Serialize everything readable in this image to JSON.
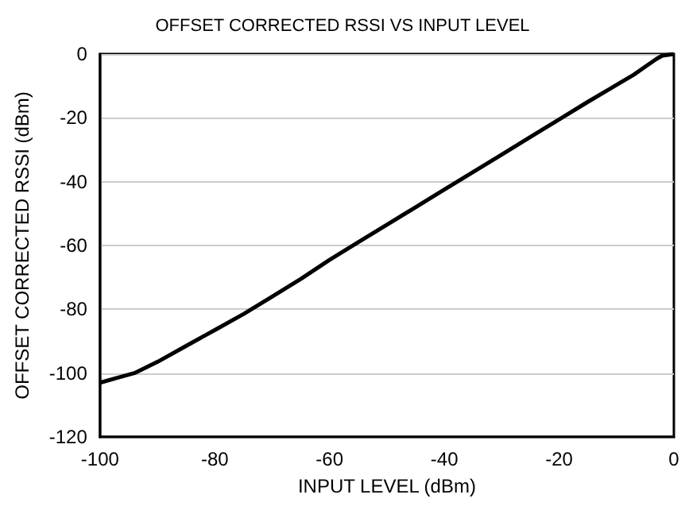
{
  "chart_data": {
    "type": "line",
    "title": "OFFSET CORRECTED RSSI VS INPUT LEVEL",
    "xlabel": "INPUT LEVEL (dBm)",
    "ylabel": "OFFSET CORRECTED RSSI (dBm)",
    "x": [
      -100,
      -97,
      -94,
      -90,
      -85,
      -80,
      -75,
      -70,
      -65,
      -60,
      -55,
      -50,
      -45,
      -40,
      -35,
      -30,
      -25,
      -20,
      -15,
      -10,
      -7,
      -5,
      -3,
      -2,
      0
    ],
    "series": [
      {
        "color": "#000000",
        "values": [
          -103,
          -101.5,
          -100,
          -96.5,
          -91.5,
          -86.5,
          -81.5,
          -76,
          -70.5,
          -64.5,
          -59,
          -53.5,
          -48,
          -42.5,
          -37,
          -31.5,
          -26,
          -20.5,
          -15,
          -9.7,
          -6.5,
          -4,
          -1.5,
          -0.5,
          0
        ]
      }
    ],
    "xlim": [
      -100,
      0
    ],
    "xticks": [
      -100,
      -80,
      -60,
      -40,
      -20,
      0
    ],
    "ylim": [
      -120,
      0
    ],
    "yticks": [
      -120,
      -100,
      -80,
      -60,
      -40,
      -20,
      0
    ],
    "grid": "y",
    "marker": "none",
    "line_style": "solid"
  }
}
